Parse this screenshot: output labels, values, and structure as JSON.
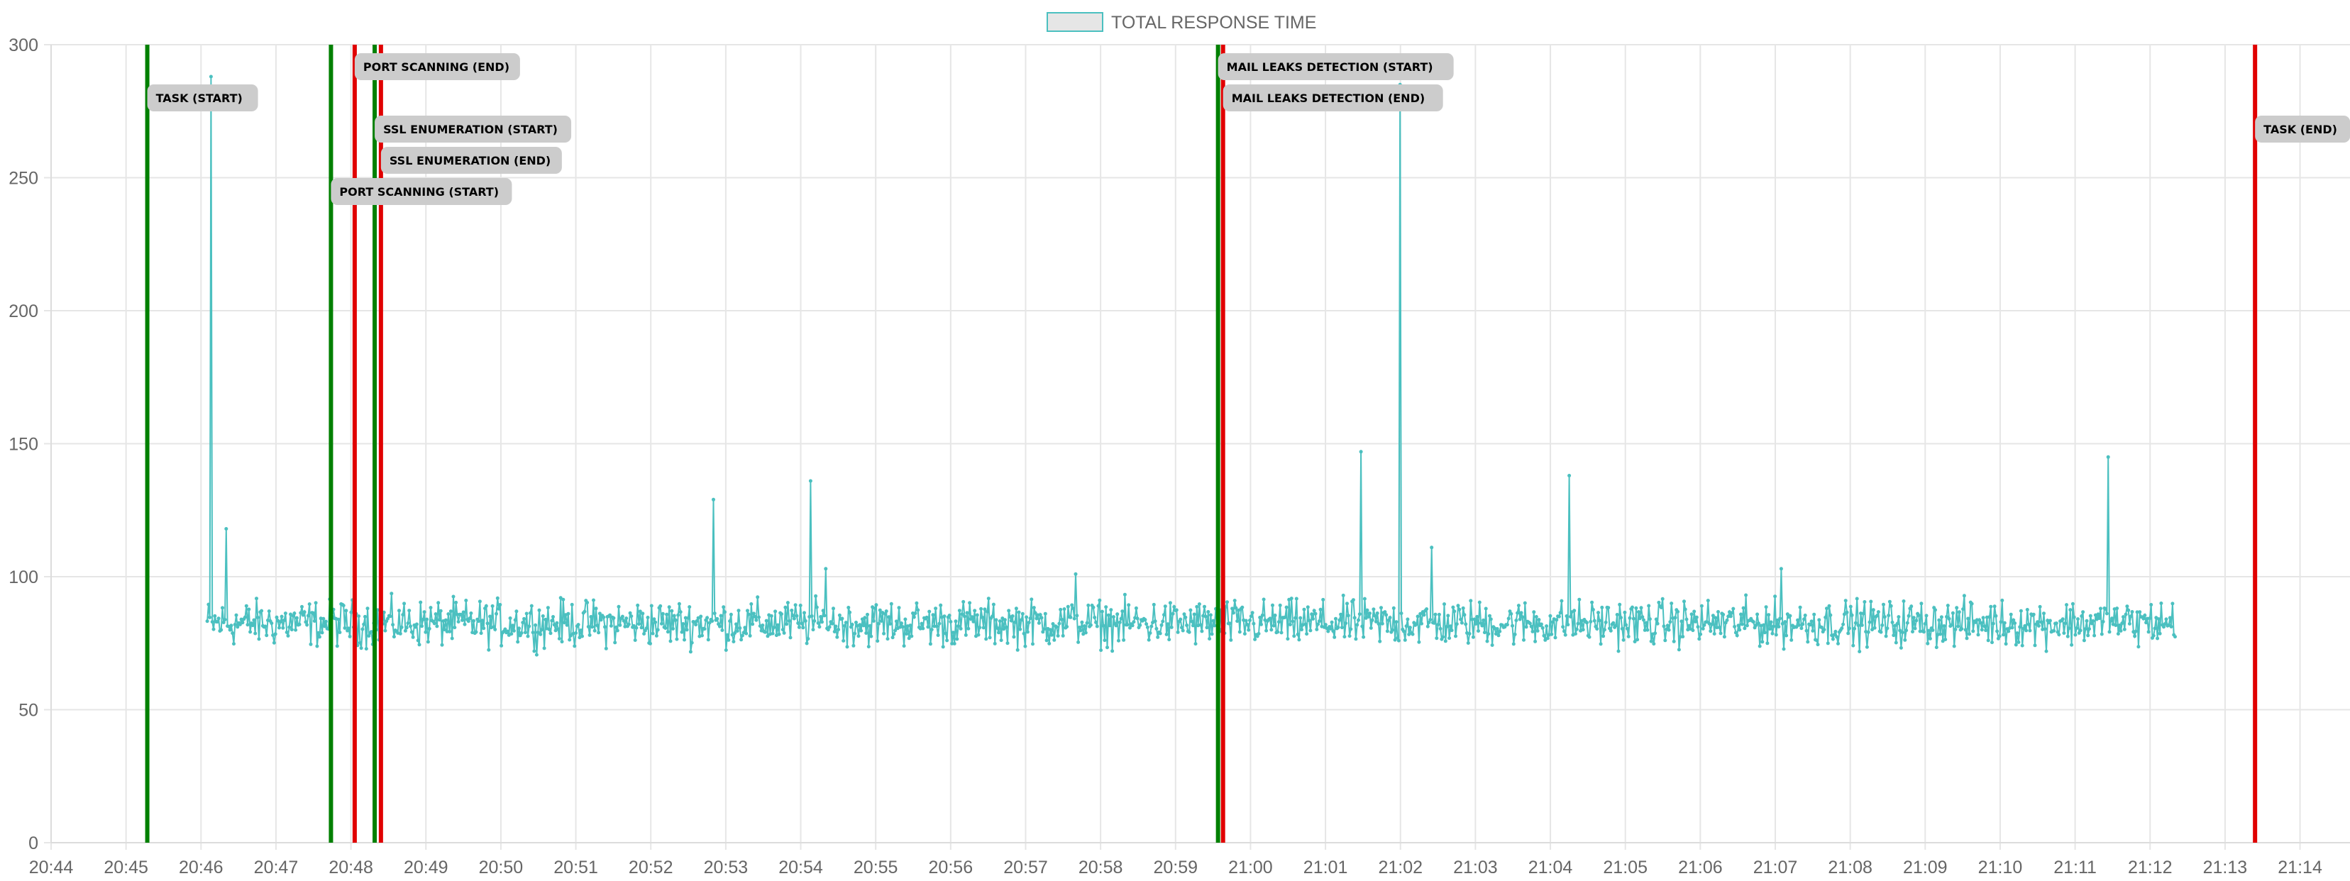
{
  "chart_data": {
    "type": "line",
    "legend": {
      "position": "top-center",
      "label": "TOTAL RESPONSE TIME"
    },
    "ylim": [
      0,
      300
    ],
    "y_ticks": [
      0,
      50,
      100,
      150,
      200,
      250,
      300
    ],
    "x_range": [
      "20:44",
      "21:14:40"
    ],
    "x_ticks": [
      "20:44",
      "20:45",
      "20:46",
      "20:47",
      "20:48",
      "20:49",
      "20:50",
      "20:51",
      "20:52",
      "20:53",
      "20:54",
      "20:55",
      "20:56",
      "20:57",
      "20:58",
      "20:59",
      "21:00",
      "21:01",
      "21:02",
      "21:03",
      "21:04",
      "21:05",
      "21:06",
      "21:07",
      "21:08",
      "21:09",
      "21:10",
      "21:11",
      "21:12",
      "21:13",
      "21:14"
    ],
    "grid": true,
    "colors": {
      "series": "#4bc0c0",
      "start_line": "#008000",
      "end_line": "#e00000",
      "label_bg": "#cccccc",
      "grid": "#e6e6e6"
    },
    "series": [
      {
        "name": "TOTAL RESPONSE TIME",
        "description": "~1560 samples roughly every second between 20:46:05 and 21:12:20, baseline fluctuating between about 70 and 95",
        "start": "20:46:05",
        "end": "21:12:20",
        "baseline_range": [
          70,
          95
        ],
        "spikes": [
          {
            "x": "20:46:08",
            "y": 288
          },
          {
            "x": "20:46:20",
            "y": 118
          },
          {
            "x": "20:52:50",
            "y": 129
          },
          {
            "x": "20:54:08",
            "y": 136
          },
          {
            "x": "20:54:20",
            "y": 103
          },
          {
            "x": "20:57:40",
            "y": 101
          },
          {
            "x": "21:01:28",
            "y": 147
          },
          {
            "x": "21:02:00",
            "y": 285
          },
          {
            "x": "21:02:25",
            "y": 111
          },
          {
            "x": "21:04:15",
            "y": 138
          },
          {
            "x": "21:07:05",
            "y": 103
          },
          {
            "x": "21:11:26",
            "y": 145
          }
        ]
      }
    ],
    "annotations": [
      {
        "label": "TASK (START)",
        "x": "20:45:17",
        "type": "start"
      },
      {
        "label": "PORT SCANNING (END)",
        "x": "20:48:03",
        "type": "end"
      },
      {
        "label": "SSL ENUMERATION (START)",
        "x": "20:48:19",
        "type": "start"
      },
      {
        "label": "SSL ENUMERATION (END)",
        "x": "20:48:24",
        "type": "end"
      },
      {
        "label": "PORT SCANNING (START)",
        "x": "20:47:44",
        "type": "start"
      },
      {
        "label": "MAIL LEAKS DETECTION (START)",
        "x": "20:59:34",
        "type": "start"
      },
      {
        "label": "MAIL LEAKS DETECTION (END)",
        "x": "20:59:38",
        "type": "end"
      },
      {
        "label": "TASK (END)",
        "x": "21:13:24",
        "type": "end"
      }
    ]
  }
}
